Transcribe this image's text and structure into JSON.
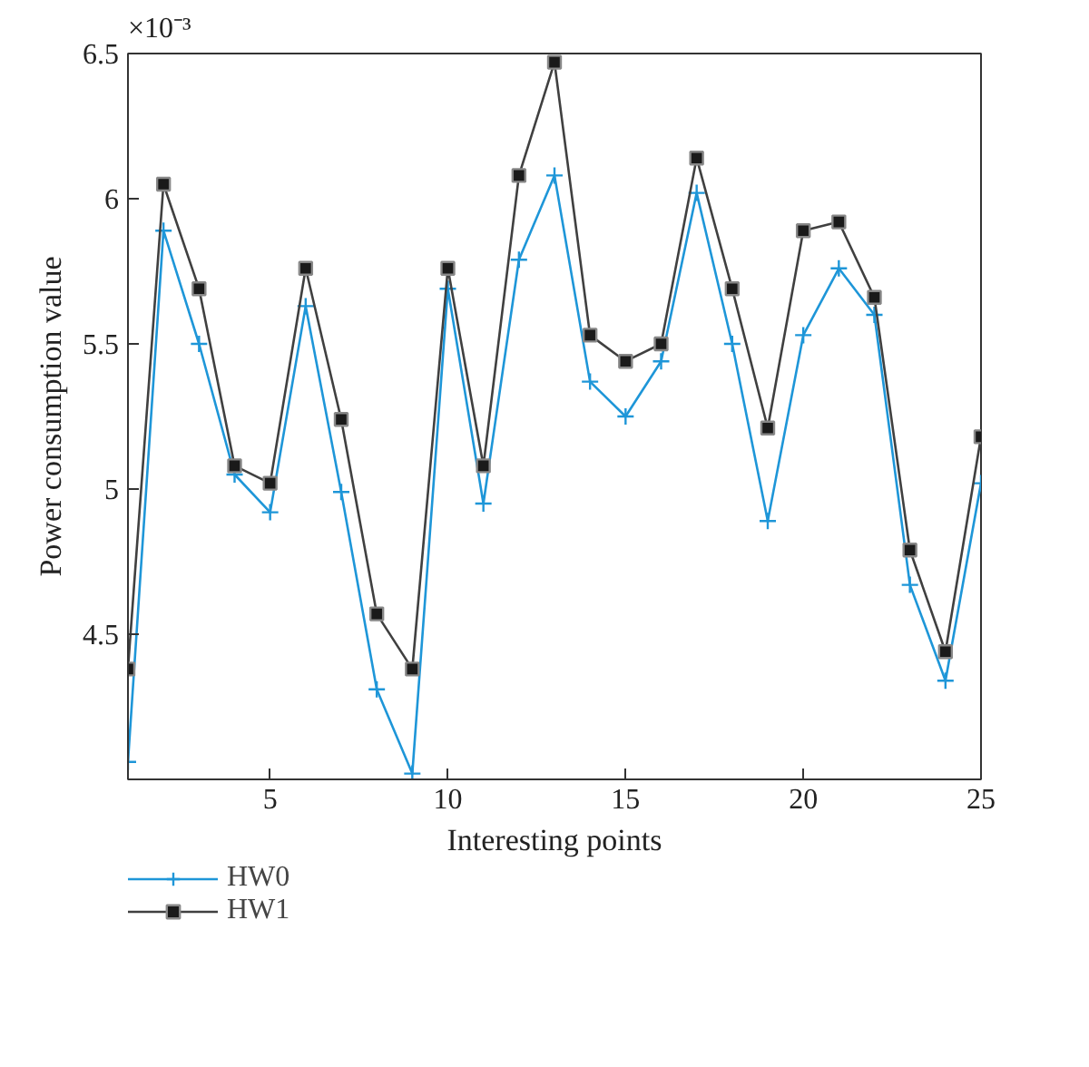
{
  "chart_data": {
    "type": "line",
    "xlabel": "Interesting points",
    "ylabel": "Power consumption value",
    "annotations": [
      "×10⁻³"
    ],
    "x": [
      1,
      2,
      3,
      4,
      5,
      6,
      7,
      8,
      9,
      10,
      11,
      12,
      13,
      14,
      15,
      16,
      17,
      18,
      19,
      20,
      21,
      22,
      23,
      24,
      25
    ],
    "series": [
      {
        "name": "HW0",
        "color": "#1e96d8",
        "marker": "cross",
        "values": [
          4.06,
          5.89,
          5.5,
          5.05,
          4.92,
          5.63,
          4.99,
          4.31,
          4.02,
          5.69,
          4.95,
          5.79,
          6.08,
          5.37,
          5.25,
          5.44,
          6.02,
          5.5,
          4.89,
          5.53,
          5.76,
          5.6,
          4.67,
          4.34,
          5.02
        ]
      },
      {
        "name": "HW1",
        "color": "#404040",
        "marker": "square",
        "values": [
          4.38,
          6.05,
          5.69,
          5.08,
          5.02,
          5.76,
          5.24,
          4.57,
          4.38,
          5.76,
          5.08,
          6.08,
          6.47,
          5.53,
          5.44,
          5.5,
          6.14,
          5.69,
          5.21,
          5.89,
          5.92,
          5.66,
          4.79,
          4.44,
          5.18
        ]
      }
    ],
    "xlim": [
      1,
      25
    ],
    "ylim": [
      4.0,
      6.5
    ],
    "xticks": [
      5,
      10,
      15,
      20,
      25
    ],
    "yticks": [
      4.5,
      5,
      5.5,
      6,
      6.5
    ],
    "grid": false,
    "legend": "bottom left",
    "line_style": "solid"
  }
}
